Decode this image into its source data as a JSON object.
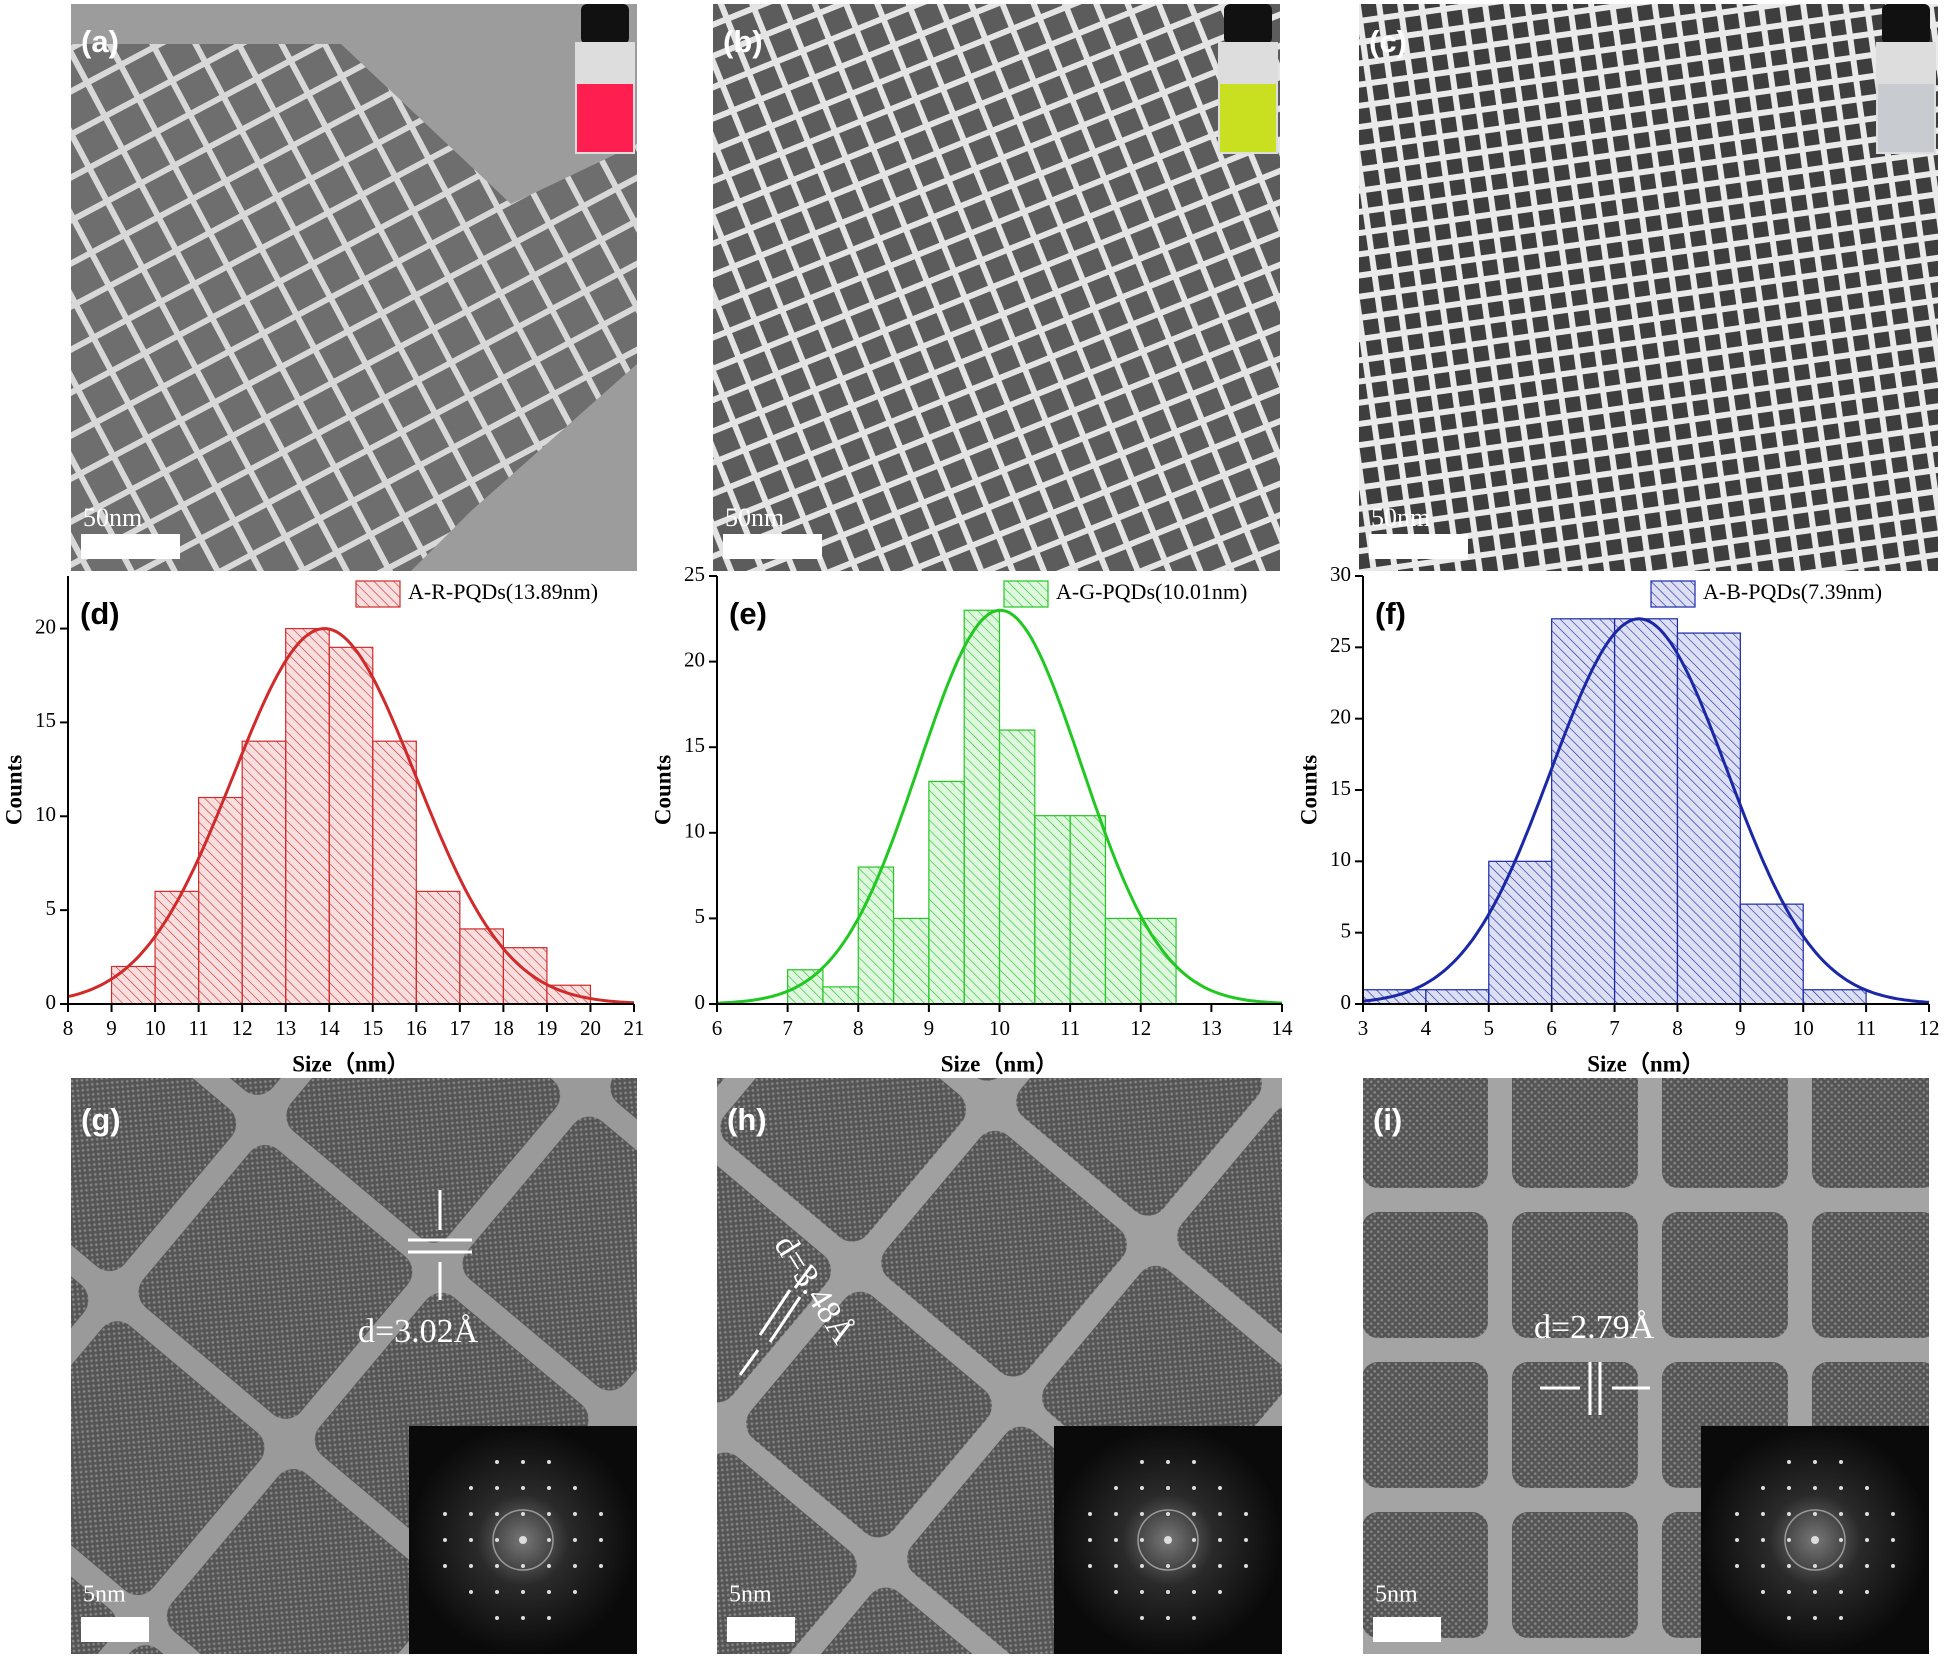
{
  "tem_images": [
    {
      "label": "(a)",
      "scale_bar": "50nm",
      "vial": "#ff1e50"
    },
    {
      "label": "(b)",
      "scale_bar": "50nm",
      "vial": "#c8e020"
    },
    {
      "label": "(c)",
      "scale_bar": "50nm",
      "vial": "#c8ccd0"
    }
  ],
  "hrtem_images": [
    {
      "label": "(g)",
      "scale_bar": "5nm",
      "spacing": "d=3.02Å"
    },
    {
      "label": "(h)",
      "scale_bar": "5nm",
      "spacing": "d=3.48Å"
    },
    {
      "label": "(i)",
      "scale_bar": "5nm",
      "spacing": "d=2.79Å"
    }
  ],
  "chart_data": [
    {
      "type": "histogram",
      "label": "(d)",
      "xlabel": "Size（nm）",
      "ylabel": "Counts",
      "bins": [
        9,
        10,
        11,
        12,
        13,
        14,
        15,
        16,
        17,
        18,
        19,
        20
      ],
      "series": [
        {
          "name": "A-R-PQDs(13.89nm)",
          "color": "#d02a2a",
          "values": [
            2,
            6,
            11,
            14,
            20,
            19,
            14,
            6,
            4,
            3,
            1
          ]
        }
      ],
      "fit": {
        "center": 13.89,
        "width": 2.1,
        "peak": 20
      },
      "xlim": [
        8,
        21
      ],
      "xticks": [
        8,
        9,
        10,
        11,
        12,
        13,
        14,
        15,
        16,
        17,
        18,
        19,
        20,
        21
      ],
      "ylim": [
        0,
        22.8
      ],
      "yticks": [
        0,
        5,
        10,
        15,
        20
      ]
    },
    {
      "type": "histogram",
      "label": "(e)",
      "xlabel": "Size（nm）",
      "ylabel": "Counts",
      "bins": [
        7,
        7.5,
        8,
        8.5,
        9,
        9.5,
        10,
        10.5,
        11,
        11.5,
        12,
        12.5
      ],
      "series": [
        {
          "name": "A-G-PQDs(10.01nm)",
          "color": "#22c822",
          "values": [
            2,
            1,
            8,
            5,
            13,
            23,
            16,
            11,
            11,
            5,
            5
          ]
        }
      ],
      "fit": {
        "center": 10.01,
        "width": 1.15,
        "peak": 23
      },
      "xlim": [
        6,
        14
      ],
      "xticks": [
        6,
        7,
        8,
        9,
        10,
        11,
        12,
        13,
        14
      ],
      "ylim": [
        0,
        25
      ],
      "yticks": [
        0,
        5,
        10,
        15,
        20,
        25
      ]
    },
    {
      "type": "histogram",
      "label": "(f)",
      "xlabel": "Size（nm）",
      "ylabel": "Counts",
      "bins": [
        3,
        4,
        5,
        6,
        7,
        8,
        9,
        10,
        11
      ],
      "series": [
        {
          "name": "A-B-PQDs(7.39nm)",
          "color": "#1a28a8",
          "values": [
            1,
            1,
            10,
            27,
            27,
            26,
            7,
            1
          ]
        }
      ],
      "fit": {
        "center": 7.39,
        "width": 1.4,
        "peak": 27
      },
      "xlim": [
        3,
        12
      ],
      "xticks": [
        3,
        4,
        5,
        6,
        7,
        8,
        9,
        10,
        11,
        12
      ],
      "ylim": [
        0,
        30
      ],
      "yticks": [
        0,
        5,
        10,
        15,
        20,
        25,
        30
      ]
    }
  ]
}
